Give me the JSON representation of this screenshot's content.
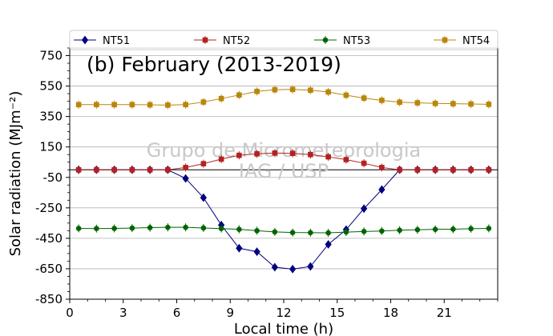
{
  "chart_data": {
    "type": "line",
    "title": "(b) February (2013-2019)",
    "xlabel": "Local time (h)",
    "ylabel": "Solar radiation (MJm⁻²)",
    "xlim": [
      0,
      24
    ],
    "ylim": [
      -850,
      800
    ],
    "xticks": [
      0,
      3,
      6,
      9,
      12,
      15,
      18,
      21
    ],
    "yticks": [
      -850,
      -650,
      -450,
      -250,
      -50,
      150,
      350,
      550,
      750
    ],
    "grid": "horizontal",
    "legend_position": "top",
    "reference_line_y": 0,
    "watermark": [
      "Grupo de Micrometeorologia",
      "IAG / USP"
    ],
    "x": [
      0.5,
      1.5,
      2.5,
      3.5,
      4.5,
      5.5,
      6.5,
      7.5,
      8.5,
      9.5,
      10.5,
      11.5,
      12.5,
      13.5,
      14.5,
      15.5,
      16.5,
      17.5,
      18.5,
      19.5,
      20.5,
      21.5,
      22.5,
      23.5
    ],
    "series": [
      {
        "name": "NT51",
        "color": "#00007f",
        "marker": "diamond",
        "values": [
          0,
          0,
          0,
          0,
          0,
          0,
          -57,
          -183,
          -363,
          -515,
          -538,
          -640,
          -652,
          -635,
          -490,
          -393,
          -255,
          -130,
          0,
          0,
          0,
          0,
          0,
          0
        ]
      },
      {
        "name": "NT52",
        "color": "#b22222",
        "marker": "square",
        "values": [
          0,
          0,
          0,
          0,
          0,
          0,
          15,
          40,
          70,
          95,
          105,
          110,
          108,
          100,
          85,
          67,
          43,
          15,
          0,
          0,
          0,
          0,
          0,
          0
        ]
      },
      {
        "name": "NT53",
        "color": "#006400",
        "marker": "circle",
        "values": [
          -385,
          -386,
          -385,
          -383,
          -380,
          -378,
          -378,
          -382,
          -386,
          -391,
          -400,
          -408,
          -412,
          -413,
          -414,
          -409,
          -405,
          -402,
          -397,
          -394,
          -391,
          -390,
          -387,
          -385
        ]
      },
      {
        "name": "NT54",
        "color": "#b8860b",
        "marker": "square",
        "values": [
          428,
          428,
          428,
          428,
          427,
          425,
          428,
          445,
          468,
          491,
          515,
          526,
          528,
          523,
          511,
          490,
          471,
          456,
          444,
          440,
          436,
          434,
          432,
          430
        ]
      }
    ]
  }
}
